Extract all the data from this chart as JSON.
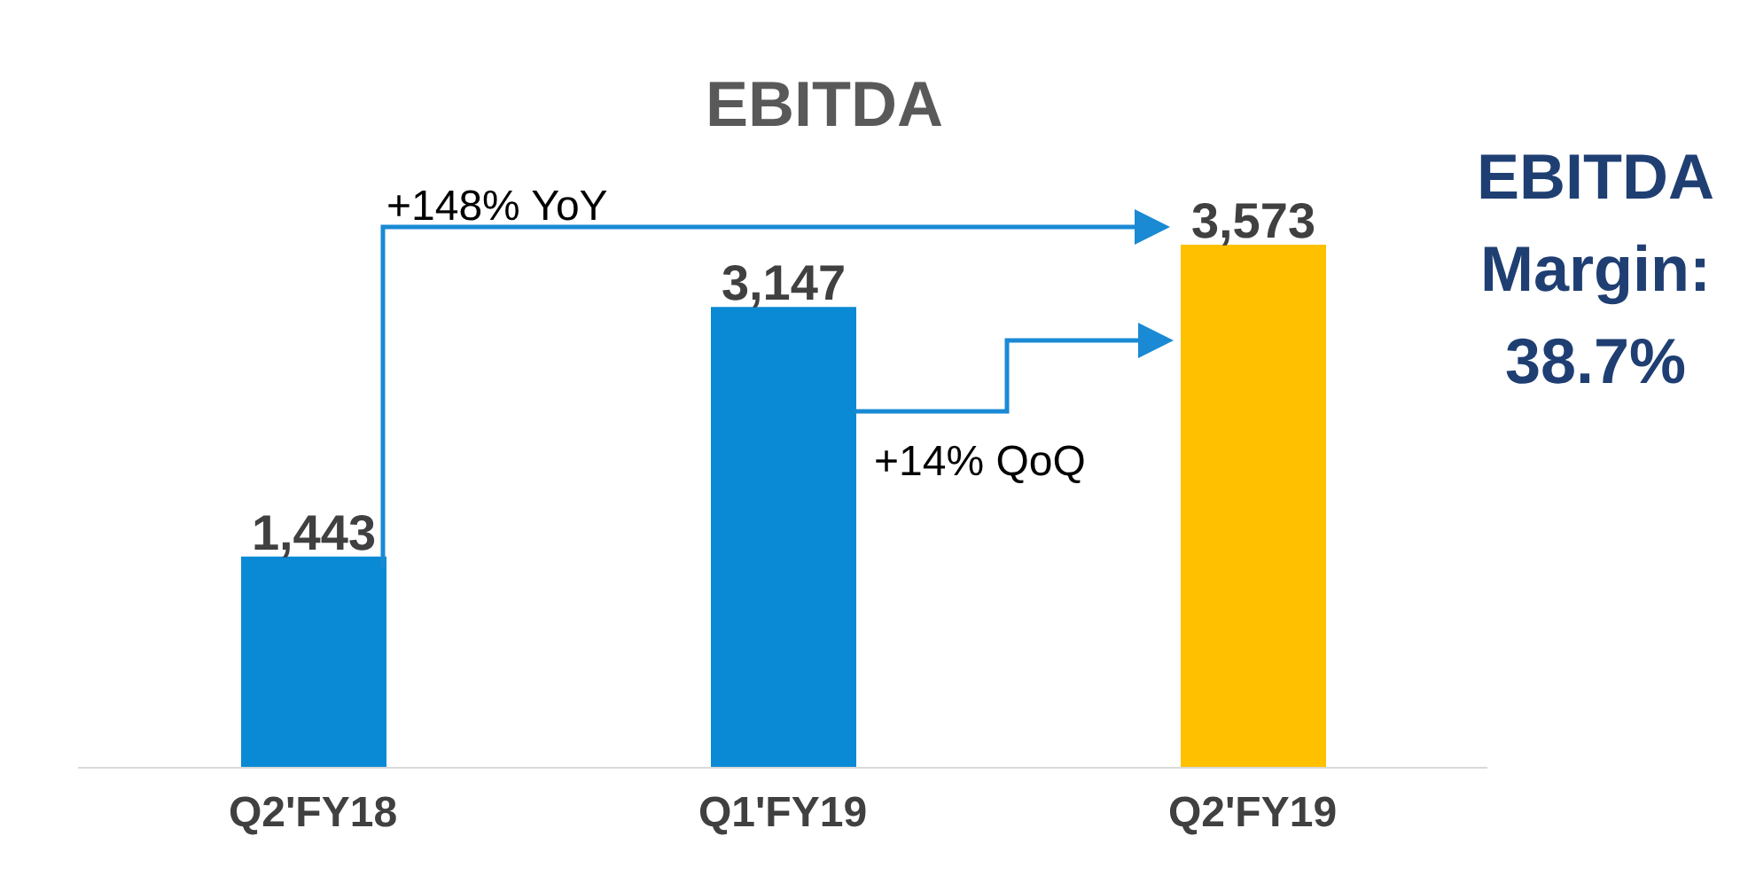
{
  "chart_data": {
    "type": "bar",
    "title": "EBITDA",
    "categories": [
      "Q2'FY18",
      "Q1'FY19",
      "Q2'FY19"
    ],
    "values": [
      1443,
      3147,
      3573
    ],
    "colors": [
      "#0a8ad4",
      "#0a8ad4",
      "#ffc000"
    ],
    "data_labels": true,
    "value_labels": [
      "1,443",
      "3,147",
      "3,573"
    ],
    "annotations": [
      "+148% YoY",
      "+14% QoQ",
      "EBITDA\nMargin:\n38.7%"
    ]
  }
}
